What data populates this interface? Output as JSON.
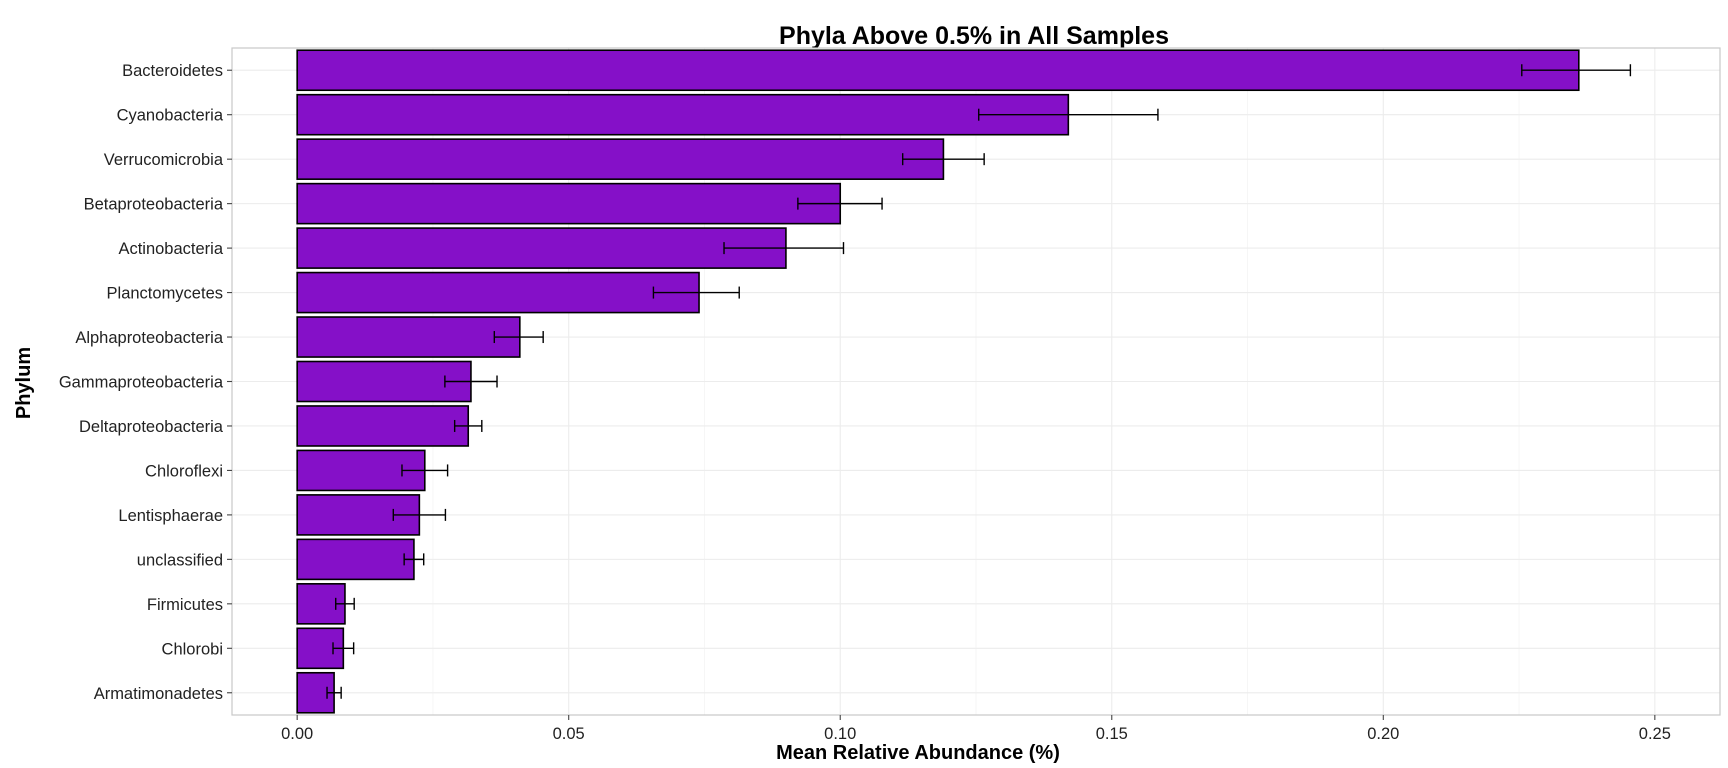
{
  "chart_data": {
    "type": "bar",
    "orientation": "horizontal",
    "title": "Phyla Above 0.5% in All Samples",
    "xlabel": "Mean Relative Abundance (%)",
    "ylabel": "Phylum",
    "xlim": [
      -0.012,
      0.262
    ],
    "x_ticks": [
      0.0,
      0.05,
      0.1,
      0.15,
      0.2,
      0.25
    ],
    "x_tick_labels": [
      "0.00",
      "0.05",
      "0.10",
      "0.15",
      "0.20",
      "0.25"
    ],
    "grid": true,
    "legend": "none",
    "bar_color": "#8510C8",
    "bar_edge_color": "#000000",
    "error_bars": true,
    "categories": [
      "Bacteroidetes",
      "Cyanobacteria",
      "Verrucomicrobia",
      "Betaproteobacteria",
      "Actinobacteria",
      "Planctomycetes",
      "Alphaproteobacteria",
      "Gammaproteobacteria",
      "Deltaproteobacteria",
      "Chloroflexi",
      "Lentisphaerae",
      "unclassified",
      "Firmicutes",
      "Chlorobi",
      "Armatimonadetes"
    ],
    "values": [
      0.236,
      0.142,
      0.119,
      0.1,
      0.09,
      0.074,
      0.041,
      0.032,
      0.0315,
      0.0235,
      0.0225,
      0.0215,
      0.0088,
      0.0085,
      0.0068
    ],
    "err_low": [
      0.2255,
      0.1255,
      0.1115,
      0.0922,
      0.0786,
      0.0656,
      0.0363,
      0.0272,
      0.029,
      0.0193,
      0.0177,
      0.0197,
      0.0071,
      0.0066,
      0.0055
    ],
    "err_high": [
      0.2455,
      0.1585,
      0.1265,
      0.1077,
      0.1006,
      0.0814,
      0.0453,
      0.0368,
      0.034,
      0.0277,
      0.0273,
      0.0233,
      0.0105,
      0.0104,
      0.0081
    ]
  }
}
